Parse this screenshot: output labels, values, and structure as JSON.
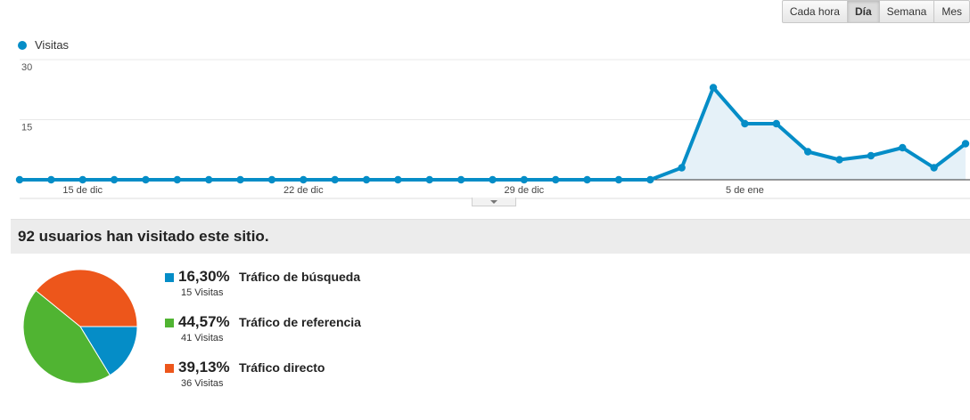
{
  "range_buttons": [
    "Cada hora",
    "Día",
    "Semana",
    "Mes"
  ],
  "active_range": "Día",
  "chart_data": {
    "type": "area",
    "series": [
      {
        "name": "Visitas",
        "color": "#058dc7",
        "values": [
          0,
          0,
          0,
          0,
          0,
          0,
          0,
          0,
          0,
          0,
          0,
          0,
          0,
          0,
          0,
          0,
          0,
          0,
          0,
          0,
          0,
          3,
          23,
          14,
          14,
          7,
          5,
          6,
          8,
          3,
          9
        ]
      }
    ],
    "x_tick_labels": [
      "15 de dic",
      "22 de dic",
      "29 de dic",
      "5 de ene"
    ],
    "x_tick_index": [
      2,
      9,
      16,
      23
    ],
    "y_tick_labels": [
      "30",
      "15"
    ],
    "ylim": [
      0,
      30
    ],
    "grid": true,
    "legend_position": "top-left"
  },
  "summary": "92 usuarios han visitado este sitio.",
  "traffic_sources": [
    {
      "pct": "16,30%",
      "name": "Tráfico de búsqueda",
      "visits": "15 Visitas",
      "color": "#058dc7",
      "fraction": 0.163
    },
    {
      "pct": "44,57%",
      "name": "Tráfico de referencia",
      "visits": "41 Visitas",
      "color": "#50b432",
      "fraction": 0.4457
    },
    {
      "pct": "39,13%",
      "name": "Tráfico directo",
      "visits": "36 Visitas",
      "color": "#ed561b",
      "fraction": 0.3913
    }
  ]
}
